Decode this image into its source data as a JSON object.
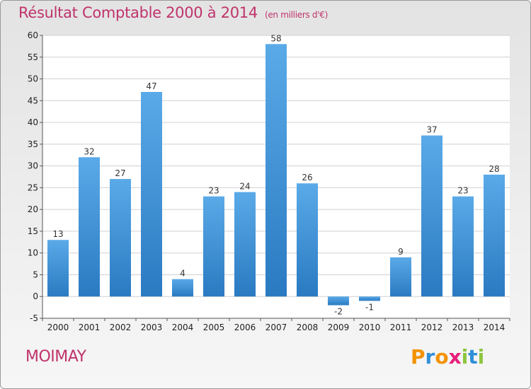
{
  "title": "Résultat Comptable 2000 à 2014",
  "subtitle": "(en milliers d'€)",
  "commune": "MOIMAY",
  "logo": {
    "letters": [
      "P",
      "r",
      "o",
      "x",
      "i",
      "t",
      "i"
    ],
    "colors": [
      "#f39200",
      "#2f8fd8",
      "#f39200",
      "#e6207a",
      "#8cc63f",
      "#2f8fd8",
      "#8cc63f"
    ]
  },
  "colors": {
    "bar_top": "#5aaae8",
    "bar_bottom": "#2a7ac2",
    "grid": "#d0d0d0",
    "accent": "#c0336b"
  },
  "chart_data": {
    "type": "bar",
    "title": "Résultat Comptable 2000 à 2014",
    "subtitle": "(en milliers d'€)",
    "xlabel": "",
    "ylabel": "",
    "ylim": [
      -5,
      60
    ],
    "yticks": [
      -5,
      0,
      5,
      10,
      15,
      20,
      25,
      30,
      35,
      40,
      45,
      50,
      55,
      60
    ],
    "grid": true,
    "categories": [
      "2000",
      "2001",
      "2002",
      "2003",
      "2004",
      "2005",
      "2006",
      "2007",
      "2008",
      "2009",
      "2010",
      "2011",
      "2012",
      "2013",
      "2014"
    ],
    "values": [
      13,
      32,
      27,
      47,
      4,
      23,
      24,
      58,
      26,
      -2,
      -1,
      9,
      37,
      23,
      28
    ]
  }
}
